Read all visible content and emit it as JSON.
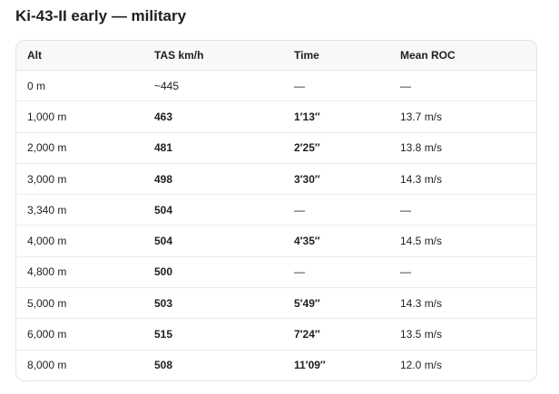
{
  "header": {
    "title": "Ki-43-II early — military"
  },
  "table": {
    "columns": [
      "Alt",
      "TAS km/h",
      "Time",
      "Mean ROC"
    ],
    "rows": [
      [
        "0 m",
        "~445",
        "—",
        "—"
      ],
      [
        "1,000 m",
        "463",
        "1′13″",
        "13.7 m/s"
      ],
      [
        "2,000 m",
        "481",
        "2′25″",
        "13.8 m/s"
      ],
      [
        "3,000 m",
        "498",
        "3′30″",
        "14.3 m/s"
      ],
      [
        "3,340 m",
        "504",
        "—",
        "—"
      ],
      [
        "4,000 m",
        "504",
        "4′35″",
        "14.5 m/s"
      ],
      [
        "4,800 m",
        "500",
        "—",
        "—"
      ],
      [
        "5,000 m",
        "503",
        "5′49″",
        "14.3 m/s"
      ],
      [
        "6,000 m",
        "515",
        "7′24″",
        "13.5 m/s"
      ],
      [
        "8,000 m",
        "508",
        "11′09″",
        "12.0 m/s"
      ]
    ]
  }
}
